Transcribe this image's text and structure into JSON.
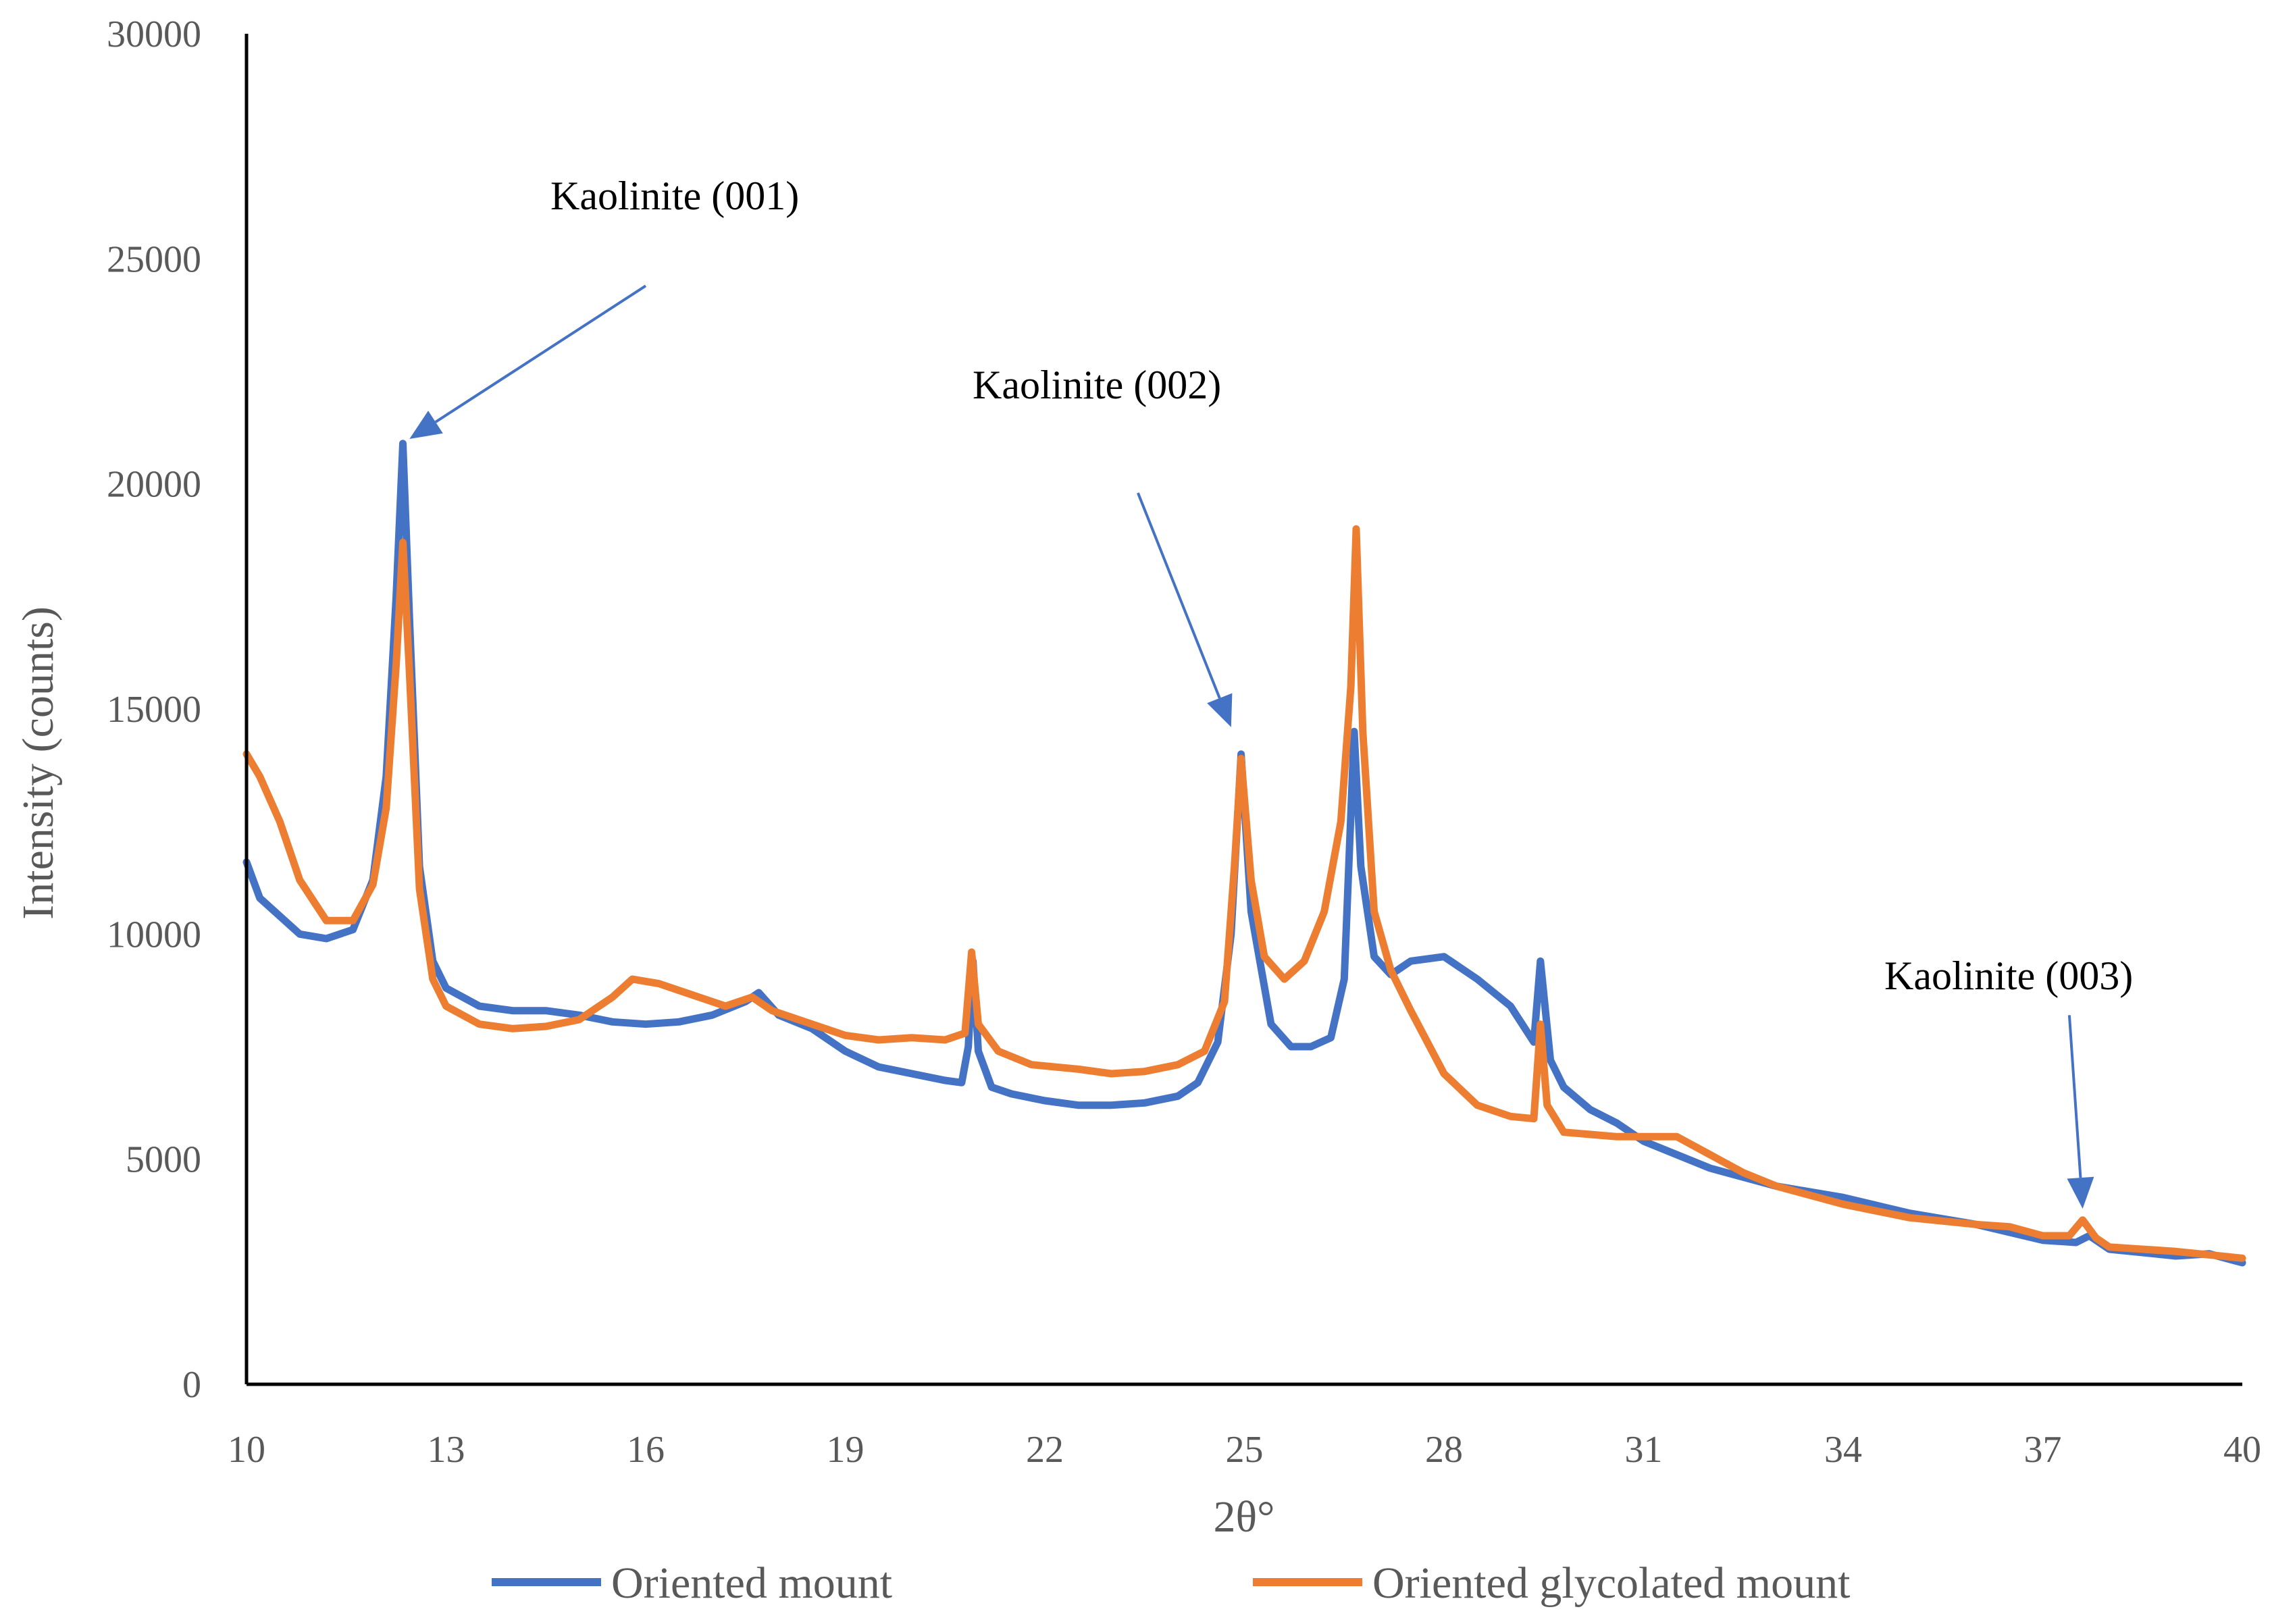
{
  "chart_data": {
    "type": "line",
    "title": "",
    "xlabel": "2θ°",
    "ylabel": "Intensity (counts)",
    "xlim": [
      10,
      40
    ],
    "ylim": [
      0,
      30000
    ],
    "grid": false,
    "legend_position": "bottom",
    "x_ticks": [
      "10",
      "13",
      "16",
      "19",
      "22",
      "25",
      "28",
      "31",
      "34",
      "37",
      "40"
    ],
    "y_ticks": [
      "0",
      "5000",
      "10000",
      "15000",
      "20000",
      "25000",
      "30000"
    ],
    "series": [
      {
        "name": "Oriented mount",
        "color": "#4472C4",
        "points": [
          [
            10.0,
            11600
          ],
          [
            10.2,
            10800
          ],
          [
            10.5,
            10400
          ],
          [
            10.8,
            10000
          ],
          [
            11.2,
            9900
          ],
          [
            11.6,
            10100
          ],
          [
            11.9,
            11200
          ],
          [
            12.1,
            13500
          ],
          [
            12.25,
            17500
          ],
          [
            12.35,
            20900
          ],
          [
            12.45,
            17000
          ],
          [
            12.6,
            11500
          ],
          [
            12.8,
            9400
          ],
          [
            13.0,
            8800
          ],
          [
            13.5,
            8400
          ],
          [
            14.0,
            8300
          ],
          [
            14.5,
            8300
          ],
          [
            15.0,
            8200
          ],
          [
            15.5,
            8050
          ],
          [
            16.0,
            8000
          ],
          [
            16.5,
            8050
          ],
          [
            17.0,
            8200
          ],
          [
            17.5,
            8500
          ],
          [
            17.7,
            8700
          ],
          [
            18.0,
            8200
          ],
          [
            18.5,
            7900
          ],
          [
            19.0,
            7400
          ],
          [
            19.5,
            7050
          ],
          [
            20.0,
            6900
          ],
          [
            20.5,
            6750
          ],
          [
            20.75,
            6700
          ],
          [
            20.85,
            7500
          ],
          [
            20.92,
            9400
          ],
          [
            21.0,
            7400
          ],
          [
            21.2,
            6600
          ],
          [
            21.5,
            6450
          ],
          [
            22.0,
            6300
          ],
          [
            22.5,
            6200
          ],
          [
            23.0,
            6200
          ],
          [
            23.5,
            6250
          ],
          [
            24.0,
            6400
          ],
          [
            24.3,
            6700
          ],
          [
            24.6,
            7600
          ],
          [
            24.8,
            10000
          ],
          [
            24.95,
            14000
          ],
          [
            25.1,
            10500
          ],
          [
            25.4,
            8000
          ],
          [
            25.7,
            7500
          ],
          [
            26.0,
            7500
          ],
          [
            26.3,
            7700
          ],
          [
            26.5,
            9000
          ],
          [
            26.65,
            14500
          ],
          [
            26.75,
            11500
          ],
          [
            26.95,
            9500
          ],
          [
            27.2,
            9100
          ],
          [
            27.5,
            9400
          ],
          [
            28.0,
            9500
          ],
          [
            28.5,
            9000
          ],
          [
            29.0,
            8400
          ],
          [
            29.35,
            7600
          ],
          [
            29.45,
            9400
          ],
          [
            29.6,
            7200
          ],
          [
            29.8,
            6600
          ],
          [
            30.2,
            6100
          ],
          [
            30.6,
            5800
          ],
          [
            31.0,
            5400
          ],
          [
            32.0,
            4800
          ],
          [
            33.0,
            4400
          ],
          [
            34.0,
            4150
          ],
          [
            35.0,
            3800
          ],
          [
            36.0,
            3550
          ],
          [
            37.0,
            3200
          ],
          [
            37.5,
            3150
          ],
          [
            37.7,
            3300
          ],
          [
            38.0,
            3000
          ],
          [
            39.0,
            2850
          ],
          [
            39.5,
            2900
          ],
          [
            40.0,
            2700
          ]
        ]
      },
      {
        "name": "Oriented glycolated mount",
        "color": "#ED7D31",
        "points": [
          [
            10.0,
            14000
          ],
          [
            10.2,
            13500
          ],
          [
            10.5,
            12500
          ],
          [
            10.8,
            11200
          ],
          [
            11.2,
            10300
          ],
          [
            11.6,
            10300
          ],
          [
            11.9,
            11100
          ],
          [
            12.1,
            12800
          ],
          [
            12.25,
            16000
          ],
          [
            12.35,
            18700
          ],
          [
            12.45,
            15800
          ],
          [
            12.6,
            11000
          ],
          [
            12.8,
            9000
          ],
          [
            13.0,
            8400
          ],
          [
            13.5,
            8000
          ],
          [
            14.0,
            7900
          ],
          [
            14.5,
            7950
          ],
          [
            15.0,
            8100
          ],
          [
            15.5,
            8600
          ],
          [
            15.8,
            9000
          ],
          [
            16.2,
            8900
          ],
          [
            16.8,
            8600
          ],
          [
            17.2,
            8400
          ],
          [
            17.6,
            8600
          ],
          [
            17.9,
            8300
          ],
          [
            18.5,
            8000
          ],
          [
            19.0,
            7750
          ],
          [
            19.5,
            7650
          ],
          [
            20.0,
            7700
          ],
          [
            20.5,
            7650
          ],
          [
            20.8,
            7800
          ],
          [
            20.9,
            9600
          ],
          [
            21.0,
            8000
          ],
          [
            21.3,
            7400
          ],
          [
            21.8,
            7100
          ],
          [
            22.5,
            7000
          ],
          [
            23.0,
            6900
          ],
          [
            23.5,
            6950
          ],
          [
            24.0,
            7100
          ],
          [
            24.4,
            7400
          ],
          [
            24.7,
            8500
          ],
          [
            24.85,
            11500
          ],
          [
            24.95,
            13900
          ],
          [
            25.1,
            11200
          ],
          [
            25.3,
            9500
          ],
          [
            25.6,
            9000
          ],
          [
            25.9,
            9400
          ],
          [
            26.2,
            10500
          ],
          [
            26.45,
            12500
          ],
          [
            26.6,
            15500
          ],
          [
            26.68,
            19000
          ],
          [
            26.78,
            14500
          ],
          [
            26.95,
            10500
          ],
          [
            27.2,
            9200
          ],
          [
            27.5,
            8300
          ],
          [
            28.0,
            6900
          ],
          [
            28.5,
            6200
          ],
          [
            29.0,
            5950
          ],
          [
            29.35,
            5900
          ],
          [
            29.45,
            8000
          ],
          [
            29.55,
            6200
          ],
          [
            29.8,
            5600
          ],
          [
            30.2,
            5550
          ],
          [
            30.6,
            5500
          ],
          [
            31.0,
            5500
          ],
          [
            31.5,
            5500
          ],
          [
            32.0,
            5100
          ],
          [
            32.5,
            4700
          ],
          [
            33.0,
            4400
          ],
          [
            34.0,
            4000
          ],
          [
            35.0,
            3700
          ],
          [
            36.0,
            3550
          ],
          [
            36.5,
            3500
          ],
          [
            37.0,
            3300
          ],
          [
            37.4,
            3300
          ],
          [
            37.6,
            3650
          ],
          [
            37.8,
            3250
          ],
          [
            38.0,
            3050
          ],
          [
            39.0,
            2950
          ],
          [
            40.0,
            2800
          ]
        ]
      }
    ],
    "annotations": [
      {
        "text": "Kaolinite (001)",
        "arrow_from": [
          16.0,
          24400
        ],
        "arrow_to": [
          12.45,
          21000
        ]
      },
      {
        "text": "Kaolinite (002)",
        "arrow_from": [
          23.4,
          19800
        ],
        "arrow_to": [
          24.8,
          14600
        ]
      },
      {
        "text": "Kaolinite (003)",
        "arrow_from": [
          37.4,
          8200
        ],
        "arrow_to": [
          37.6,
          3900
        ]
      }
    ]
  }
}
